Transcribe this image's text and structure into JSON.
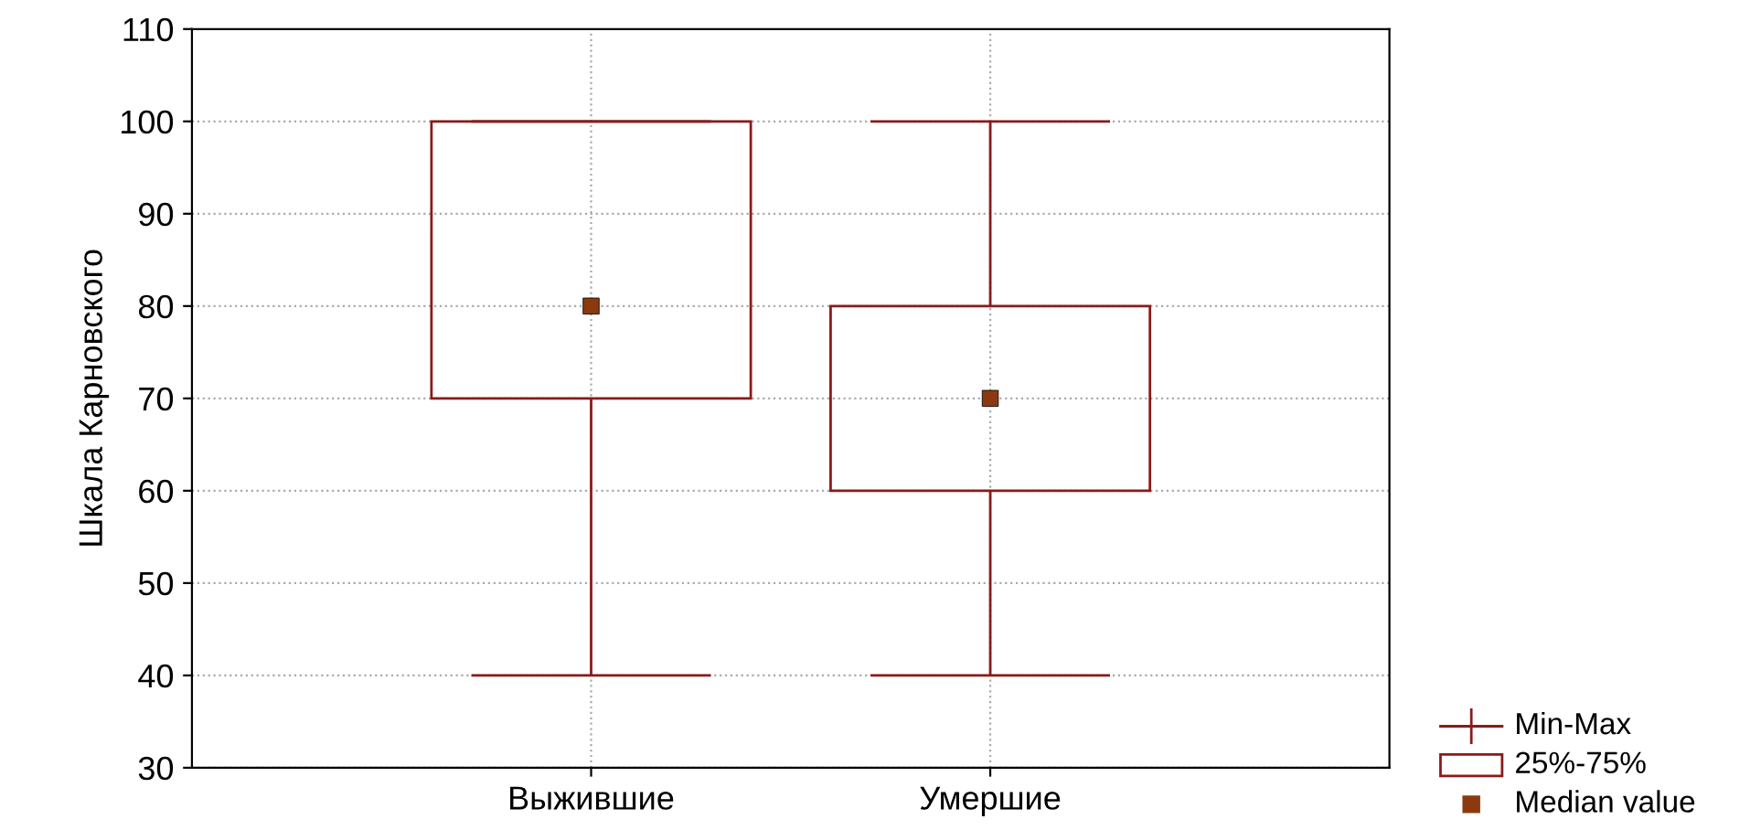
{
  "chart_data": {
    "type": "box",
    "ylabel": "Шкала Карновского",
    "categories": [
      "Выжившие",
      "Умершие"
    ],
    "series": [
      {
        "color": "#8b1a1a",
        "boxes": [
          {
            "low": 40,
            "q1": 70,
            "median": 80,
            "q3": 100,
            "high": 100
          },
          {
            "low": 40,
            "q1": 60,
            "median": 70,
            "q3": 80,
            "high": 100
          }
        ]
      }
    ],
    "annotations": [
      "Min-Max",
      "25%-75%",
      "Median value"
    ],
    "ylim": [
      30,
      110
    ],
    "yticks": [
      30,
      40,
      50,
      60,
      70,
      80,
      90,
      100,
      110
    ],
    "grid": true,
    "marker": "square"
  }
}
